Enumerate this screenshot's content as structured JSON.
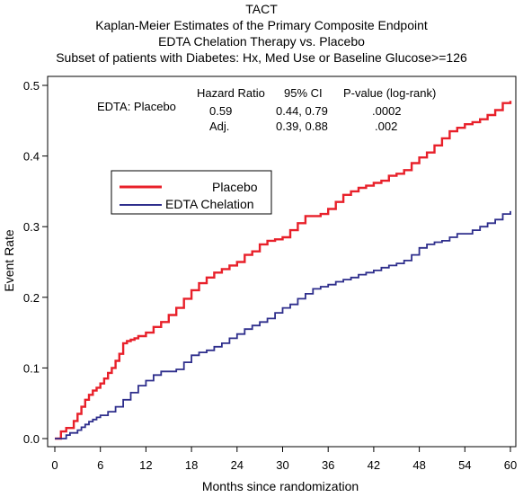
{
  "chart_data": {
    "type": "line",
    "title": "TACT",
    "subtitles": [
      "Kaplan-Meier Estimates of the Primary Composite Endpoint",
      "EDTA Chelation Therapy vs. Placebo",
      "Subset of patients with Diabetes: Hx, Med Use or Baseline Glucose>=126"
    ],
    "xlabel": "Months since randomization",
    "ylabel": "Event Rate",
    "xlim": [
      0,
      60
    ],
    "ylim": [
      0,
      0.5
    ],
    "xticks": [
      0,
      6,
      12,
      18,
      24,
      30,
      36,
      42,
      48,
      54,
      60
    ],
    "xtick_labels": [
      "0",
      "6",
      "12",
      "18",
      "24",
      "30",
      "36",
      "42",
      "48",
      "54",
      "60"
    ],
    "yticks": [
      0,
      0.1,
      0.2,
      0.3,
      0.4,
      0.5
    ],
    "ytick_labels": [
      "0.0",
      "0.1",
      "0.2",
      "0.3",
      "0.4",
      "0.5"
    ],
    "grid": false,
    "legend_position": "upper-left",
    "stats_table": {
      "row_label": "EDTA: Placebo",
      "headers": [
        "Hazard Ratio",
        "95% CI",
        "P-value (log-rank)"
      ],
      "rows": [
        {
          "label": "",
          "hr": "0.59",
          "ci": "0.44, 0.79",
          "p": ".0002"
        },
        {
          "label": "Adj.",
          "hr": "",
          "ci": "0.39, 0.88",
          "p": ".002"
        }
      ]
    },
    "series": [
      {
        "name": "Placebo",
        "color": "#e8202a",
        "x": [
          0,
          0.8,
          1.5,
          2.5,
          3,
          3.5,
          4,
          4.5,
          5,
          5.5,
          6,
          6.5,
          7,
          7.5,
          8,
          8.5,
          9,
          9.5,
          10,
          10.5,
          11,
          12,
          13,
          14,
          15,
          16,
          17,
          18,
          19,
          20,
          21,
          22,
          23,
          24,
          25,
          26,
          27,
          28,
          29,
          30,
          31,
          32,
          33,
          34,
          35,
          36,
          37,
          38,
          39,
          40,
          41,
          42,
          43,
          44,
          45,
          46,
          47,
          48,
          49,
          50,
          51,
          52,
          53,
          54,
          55,
          56,
          57,
          58,
          59,
          60
        ],
        "y": [
          0,
          0.01,
          0.015,
          0.025,
          0.035,
          0.045,
          0.055,
          0.062,
          0.068,
          0.072,
          0.078,
          0.085,
          0.093,
          0.1,
          0.11,
          0.12,
          0.135,
          0.138,
          0.14,
          0.142,
          0.145,
          0.15,
          0.158,
          0.165,
          0.175,
          0.185,
          0.198,
          0.21,
          0.22,
          0.228,
          0.235,
          0.24,
          0.245,
          0.25,
          0.26,
          0.265,
          0.275,
          0.28,
          0.282,
          0.285,
          0.295,
          0.305,
          0.315,
          0.315,
          0.318,
          0.325,
          0.335,
          0.345,
          0.35,
          0.355,
          0.358,
          0.362,
          0.365,
          0.372,
          0.375,
          0.38,
          0.39,
          0.398,
          0.405,
          0.415,
          0.425,
          0.435,
          0.44,
          0.445,
          0.448,
          0.452,
          0.458,
          0.465,
          0.475,
          0.478
        ]
      },
      {
        "name": "EDTA Chelation",
        "color": "#2e2e8c",
        "x": [
          0,
          1.5,
          2,
          3,
          3.5,
          4,
          4.5,
          5,
          5.5,
          6,
          7,
          8,
          9,
          10,
          11,
          12,
          13,
          14,
          15,
          16,
          17,
          18,
          19,
          20,
          21,
          22,
          23,
          24,
          25,
          26,
          27,
          28,
          29,
          30,
          31,
          32,
          33,
          34,
          35,
          36,
          37,
          38,
          39,
          40,
          41,
          42,
          43,
          44,
          45,
          46,
          47,
          48,
          49,
          50,
          51,
          52,
          53,
          54,
          55,
          56,
          57,
          58,
          59,
          60
        ],
        "y": [
          0,
          0.005,
          0.008,
          0.012,
          0.016,
          0.02,
          0.024,
          0.027,
          0.03,
          0.033,
          0.038,
          0.045,
          0.055,
          0.065,
          0.075,
          0.082,
          0.09,
          0.095,
          0.095,
          0.098,
          0.108,
          0.118,
          0.122,
          0.125,
          0.13,
          0.135,
          0.142,
          0.148,
          0.155,
          0.16,
          0.165,
          0.17,
          0.178,
          0.185,
          0.19,
          0.198,
          0.205,
          0.212,
          0.215,
          0.218,
          0.222,
          0.225,
          0.228,
          0.232,
          0.235,
          0.238,
          0.242,
          0.245,
          0.248,
          0.252,
          0.26,
          0.27,
          0.275,
          0.278,
          0.28,
          0.285,
          0.29,
          0.29,
          0.295,
          0.3,
          0.305,
          0.31,
          0.318,
          0.322
        ]
      }
    ]
  }
}
